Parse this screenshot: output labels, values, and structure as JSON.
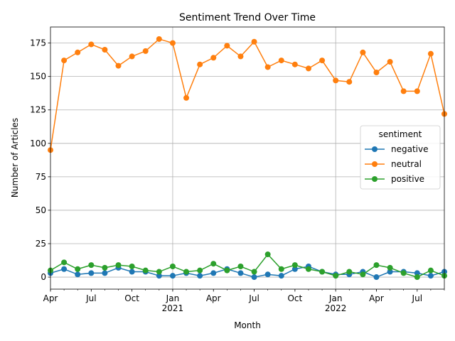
{
  "chart_data": {
    "type": "line",
    "title": "Sentiment Trend Over Time",
    "xlabel": "Month",
    "ylabel": "Number of Articles",
    "x": [
      "2020-04",
      "2020-05",
      "2020-06",
      "2020-07",
      "2020-08",
      "2020-09",
      "2020-10",
      "2020-11",
      "2020-12",
      "2021-01",
      "2021-02",
      "2021-03",
      "2021-04",
      "2021-05",
      "2021-06",
      "2021-07",
      "2021-08",
      "2021-09",
      "2021-10",
      "2021-11",
      "2021-12",
      "2022-01",
      "2022-02",
      "2022-03",
      "2022-04",
      "2022-05",
      "2022-06",
      "2022-07",
      "2022-08",
      "2022-09"
    ],
    "x_tick_labels": [
      {
        "x": "2020-04",
        "label": "Apr",
        "sublabel": ""
      },
      {
        "x": "2020-07",
        "label": "Jul",
        "sublabel": ""
      },
      {
        "x": "2020-10",
        "label": "Oct",
        "sublabel": ""
      },
      {
        "x": "2021-01",
        "label": "Jan",
        "sublabel": "2021"
      },
      {
        "x": "2021-04",
        "label": "Apr",
        "sublabel": ""
      },
      {
        "x": "2021-07",
        "label": "Jul",
        "sublabel": ""
      },
      {
        "x": "2021-10",
        "label": "Oct",
        "sublabel": ""
      },
      {
        "x": "2022-01",
        "label": "Jan",
        "sublabel": "2022"
      },
      {
        "x": "2022-04",
        "label": "Apr",
        "sublabel": ""
      },
      {
        "x": "2022-07",
        "label": "Jul",
        "sublabel": ""
      }
    ],
    "y_ticks": [
      0,
      25,
      50,
      75,
      100,
      125,
      150,
      175
    ],
    "ylim": [
      -9,
      187
    ],
    "xlim": [
      "2020-04",
      "2022-09"
    ],
    "grid": "major",
    "legend": {
      "title": "sentiment",
      "position": "center-right"
    },
    "series": [
      {
        "name": "negative",
        "color": "#1f77b4",
        "values": [
          3,
          6,
          2,
          3,
          3,
          7,
          4,
          4,
          1,
          1,
          3,
          1,
          3,
          6,
          3,
          0,
          2,
          1,
          6,
          8,
          4,
          2,
          2,
          4,
          0,
          4,
          4,
          3,
          1,
          4
        ]
      },
      {
        "name": "neutral",
        "color": "#ff7f0e",
        "values": [
          95,
          162,
          168,
          174,
          170,
          158,
          165,
          169,
          178,
          175,
          134,
          159,
          164,
          173,
          165,
          176,
          157,
          162,
          159,
          156,
          162,
          147,
          146,
          168,
          153,
          161,
          139,
          139,
          167,
          122
        ]
      },
      {
        "name": "positive",
        "color": "#2ca02c",
        "values": [
          5,
          11,
          6,
          9,
          7,
          9,
          8,
          5,
          4,
          8,
          4,
          5,
          10,
          5,
          8,
          4,
          17,
          6,
          9,
          6,
          4,
          1,
          4,
          2,
          9,
          7,
          3,
          0,
          5,
          1
        ]
      }
    ]
  }
}
